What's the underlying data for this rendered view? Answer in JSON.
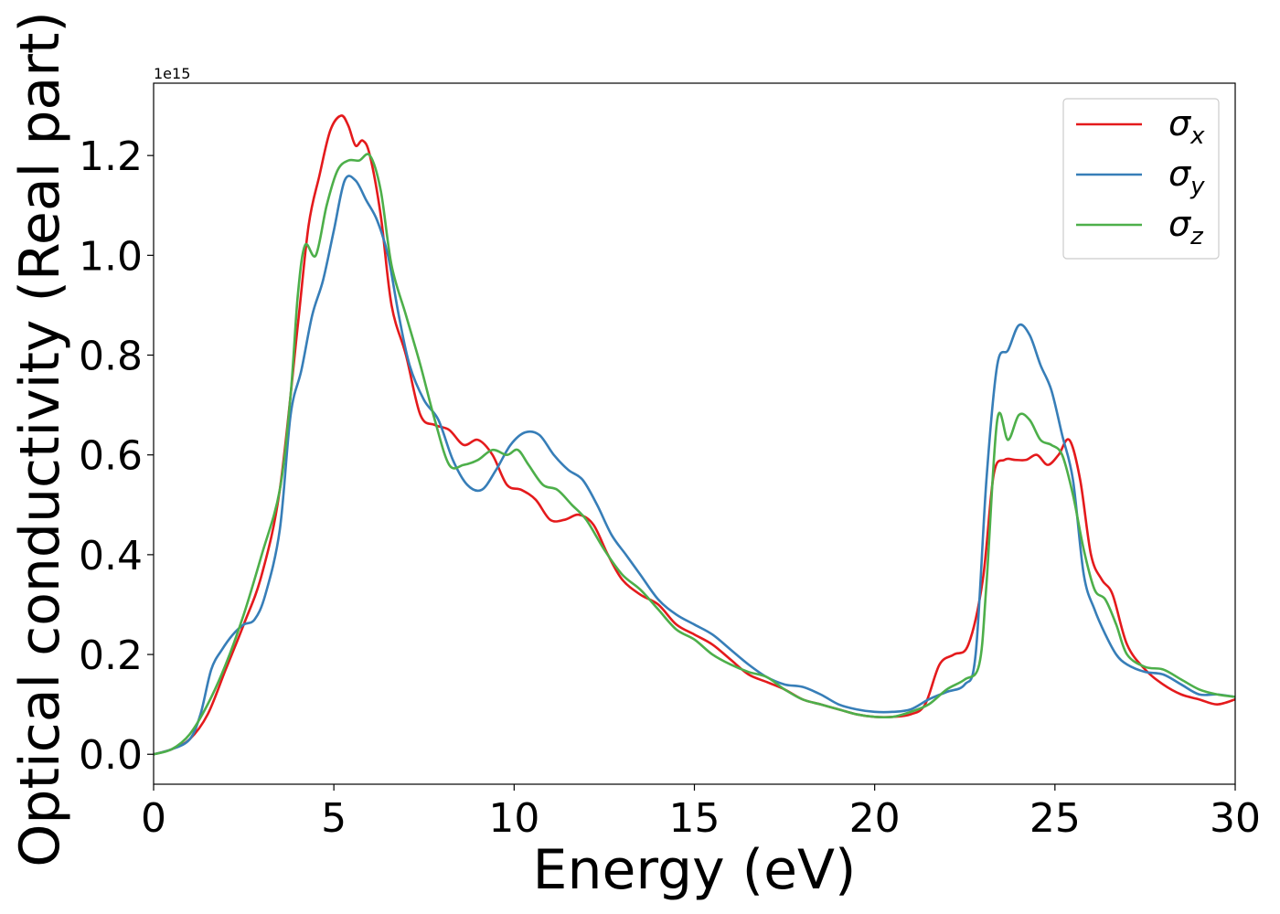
{
  "chart_data": {
    "type": "line",
    "xlabel": "Energy (eV)",
    "ylabel": "Optical conductivity (Real part)",
    "y_offset_text": "1e15",
    "y_scale": 1000000000000000.0,
    "xlim": [
      0,
      30
    ],
    "ylim": [
      -0.06,
      1.345
    ],
    "xticks": [
      0,
      5,
      10,
      15,
      20,
      25,
      30
    ],
    "xtick_labels": [
      "0",
      "5",
      "10",
      "15",
      "20",
      "25",
      "30"
    ],
    "yticks": [
      0.0,
      0.2,
      0.4,
      0.6,
      0.8,
      1.0,
      1.2
    ],
    "ytick_labels": [
      "0.0",
      "0.2",
      "0.4",
      "0.6",
      "0.8",
      "1.0",
      "1.2"
    ],
    "grid": false,
    "legend_position": "top-right",
    "series": [
      {
        "name": "σ",
        "subscript": "x",
        "color": "#e41a1c",
        "x": [
          0,
          0.5,
          1.0,
          1.5,
          2.0,
          2.5,
          3.0,
          3.5,
          4.0,
          4.3,
          4.6,
          4.9,
          5.2,
          5.4,
          5.6,
          5.8,
          6.0,
          6.3,
          6.6,
          7.0,
          7.4,
          7.8,
          8.2,
          8.6,
          9.0,
          9.4,
          9.8,
          10.2,
          10.6,
          11.0,
          11.4,
          11.8,
          12.2,
          12.6,
          13.0,
          13.5,
          14.0,
          14.5,
          15.0,
          15.5,
          16.0,
          16.5,
          17.0,
          17.5,
          18.0,
          18.5,
          19.0,
          19.5,
          20.0,
          20.5,
          21.0,
          21.4,
          21.8,
          22.2,
          22.6,
          23.0,
          23.3,
          23.6,
          23.9,
          24.2,
          24.5,
          24.8,
          25.1,
          25.4,
          25.7,
          26.0,
          26.3,
          26.6,
          27.0,
          27.5,
          28.0,
          28.5,
          29.0,
          29.5,
          30.0
        ],
        "y": [
          0.0,
          0.01,
          0.03,
          0.08,
          0.17,
          0.26,
          0.36,
          0.53,
          0.86,
          1.06,
          1.16,
          1.25,
          1.28,
          1.26,
          1.22,
          1.23,
          1.2,
          1.08,
          0.9,
          0.8,
          0.68,
          0.66,
          0.65,
          0.62,
          0.63,
          0.6,
          0.54,
          0.53,
          0.51,
          0.47,
          0.47,
          0.48,
          0.46,
          0.4,
          0.35,
          0.32,
          0.3,
          0.26,
          0.24,
          0.22,
          0.19,
          0.16,
          0.145,
          0.13,
          0.11,
          0.1,
          0.09,
          0.08,
          0.075,
          0.075,
          0.08,
          0.1,
          0.18,
          0.2,
          0.22,
          0.35,
          0.56,
          0.59,
          0.59,
          0.59,
          0.6,
          0.58,
          0.6,
          0.63,
          0.55,
          0.4,
          0.35,
          0.32,
          0.22,
          0.17,
          0.14,
          0.12,
          0.11,
          0.1,
          0.11
        ]
      },
      {
        "name": "σ",
        "subscript": "y",
        "color": "#377eb8",
        "x": [
          0,
          0.5,
          1.0,
          1.3,
          1.6,
          1.9,
          2.2,
          2.5,
          2.8,
          3.1,
          3.5,
          3.8,
          4.1,
          4.4,
          4.7,
          5.0,
          5.3,
          5.6,
          5.9,
          6.2,
          6.5,
          6.8,
          7.1,
          7.5,
          7.9,
          8.3,
          8.7,
          9.1,
          9.5,
          9.9,
          10.3,
          10.7,
          11.1,
          11.5,
          11.9,
          12.3,
          12.7,
          13.1,
          13.5,
          14.0,
          14.5,
          15.0,
          15.5,
          16.0,
          16.5,
          17.0,
          17.5,
          18.0,
          18.5,
          19.0,
          19.5,
          20.0,
          20.5,
          21.0,
          21.5,
          22.0,
          22.5,
          22.8,
          23.1,
          23.4,
          23.7,
          24.0,
          24.3,
          24.6,
          24.9,
          25.2,
          25.5,
          25.8,
          26.1,
          26.4,
          26.7,
          27.0,
          27.5,
          28.0,
          28.5,
          29.0,
          29.5,
          30.0
        ],
        "y": [
          0.0,
          0.01,
          0.03,
          0.08,
          0.17,
          0.21,
          0.24,
          0.26,
          0.27,
          0.32,
          0.45,
          0.68,
          0.77,
          0.88,
          0.95,
          1.05,
          1.15,
          1.15,
          1.11,
          1.07,
          1.0,
          0.88,
          0.78,
          0.71,
          0.67,
          0.59,
          0.54,
          0.53,
          0.57,
          0.62,
          0.645,
          0.64,
          0.6,
          0.57,
          0.55,
          0.5,
          0.44,
          0.4,
          0.36,
          0.31,
          0.28,
          0.26,
          0.24,
          0.21,
          0.18,
          0.155,
          0.14,
          0.135,
          0.12,
          0.1,
          0.09,
          0.085,
          0.085,
          0.09,
          0.11,
          0.125,
          0.14,
          0.2,
          0.55,
          0.78,
          0.81,
          0.86,
          0.84,
          0.78,
          0.73,
          0.64,
          0.55,
          0.36,
          0.29,
          0.24,
          0.2,
          0.18,
          0.165,
          0.16,
          0.14,
          0.12,
          0.12,
          0.115
        ]
      },
      {
        "name": "σ",
        "subscript": "z",
        "color": "#4daf4a",
        "x": [
          0,
          0.5,
          1.0,
          1.5,
          2.0,
          2.5,
          3.0,
          3.5,
          3.8,
          4.0,
          4.2,
          4.5,
          4.8,
          5.1,
          5.4,
          5.7,
          6.0,
          6.3,
          6.6,
          7.0,
          7.4,
          7.8,
          8.2,
          8.6,
          9.0,
          9.4,
          9.8,
          10.1,
          10.4,
          10.8,
          11.2,
          11.6,
          12.0,
          12.5,
          13.0,
          13.5,
          14.0,
          14.5,
          15.0,
          15.5,
          16.0,
          16.5,
          17.0,
          17.5,
          18.0,
          18.5,
          19.0,
          19.5,
          20.0,
          20.5,
          21.0,
          21.5,
          22.0,
          22.5,
          22.9,
          23.1,
          23.4,
          23.7,
          24.0,
          24.3,
          24.6,
          24.9,
          25.2,
          25.5,
          25.8,
          26.1,
          26.4,
          26.7,
          27.0,
          27.5,
          28.0,
          28.5,
          29.0,
          29.5,
          30.0
        ],
        "y": [
          0.0,
          0.01,
          0.04,
          0.1,
          0.18,
          0.28,
          0.4,
          0.53,
          0.72,
          0.92,
          1.02,
          1.0,
          1.1,
          1.17,
          1.19,
          1.19,
          1.2,
          1.13,
          0.98,
          0.88,
          0.78,
          0.67,
          0.58,
          0.58,
          0.59,
          0.61,
          0.6,
          0.61,
          0.58,
          0.54,
          0.53,
          0.5,
          0.47,
          0.41,
          0.36,
          0.33,
          0.29,
          0.25,
          0.23,
          0.2,
          0.18,
          0.165,
          0.155,
          0.13,
          0.11,
          0.1,
          0.09,
          0.08,
          0.075,
          0.075,
          0.085,
          0.1,
          0.13,
          0.15,
          0.18,
          0.34,
          0.67,
          0.63,
          0.68,
          0.67,
          0.63,
          0.62,
          0.6,
          0.52,
          0.41,
          0.33,
          0.31,
          0.26,
          0.2,
          0.175,
          0.17,
          0.15,
          0.13,
          0.12,
          0.115
        ]
      }
    ]
  }
}
